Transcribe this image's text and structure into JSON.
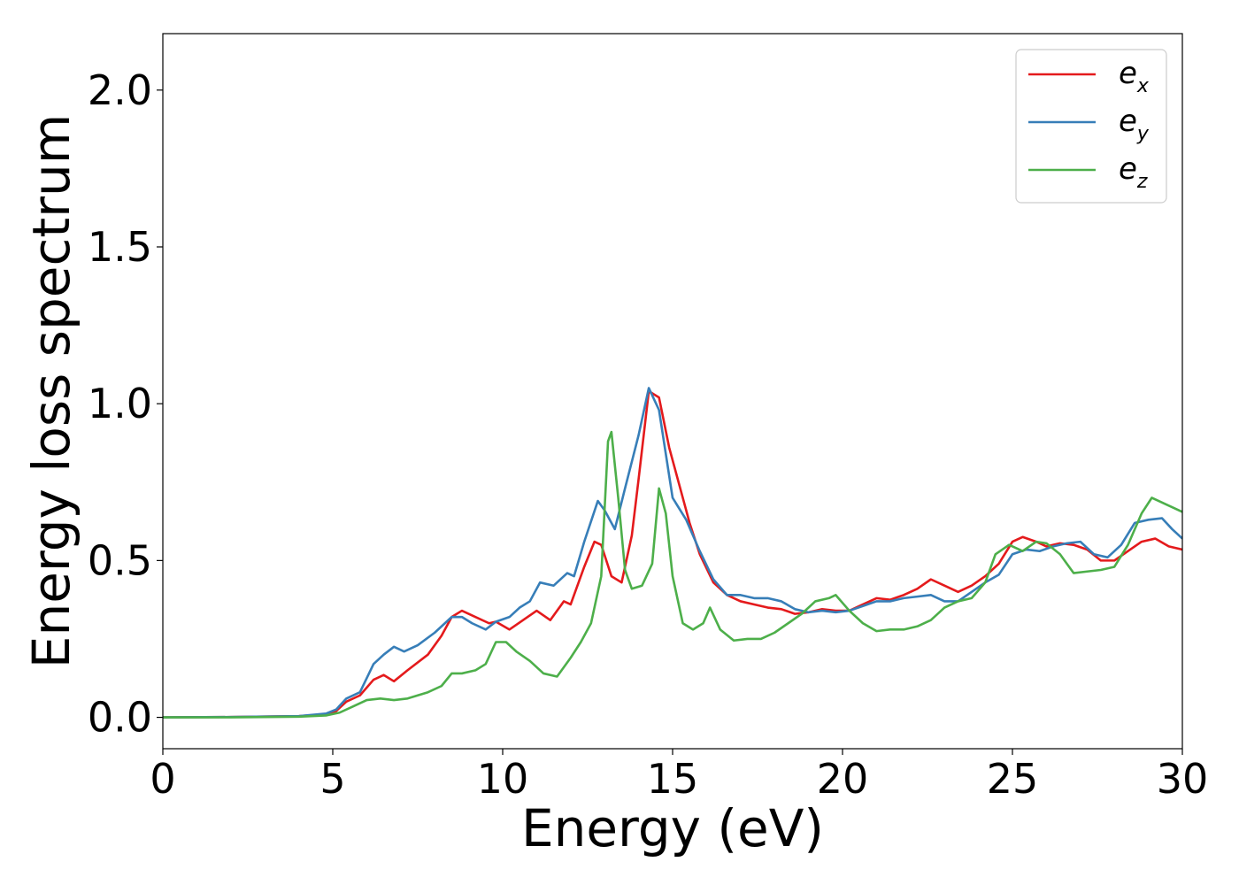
{
  "chart_data": {
    "type": "line",
    "title": "",
    "xlabel": "Energy (eV)",
    "ylabel": "Energy loss spectrum",
    "xlim": [
      0,
      30
    ],
    "ylim": [
      -0.1,
      2.18
    ],
    "xticks": [
      0,
      5,
      10,
      15,
      20,
      25,
      30
    ],
    "xtick_labels": [
      "0",
      "5",
      "10",
      "15",
      "20",
      "25",
      "30"
    ],
    "yticks": [
      0.0,
      0.5,
      1.0,
      1.5,
      2.0
    ],
    "ytick_labels": [
      "0.0",
      "0.5",
      "1.0",
      "1.5",
      "2.0"
    ],
    "grid": false,
    "legend_position": "top-right",
    "series": [
      {
        "name": "e_x",
        "label_base": "e",
        "label_sub": "x",
        "color": "#e41a1c",
        "points": [
          [
            0,
            0
          ],
          [
            2,
            0.001
          ],
          [
            4,
            0.004
          ],
          [
            4.8,
            0.01
          ],
          [
            5.1,
            0.02
          ],
          [
            5.4,
            0.05
          ],
          [
            5.8,
            0.07
          ],
          [
            6.2,
            0.12
          ],
          [
            6.5,
            0.135
          ],
          [
            6.8,
            0.115
          ],
          [
            7.2,
            0.15
          ],
          [
            7.8,
            0.2
          ],
          [
            8.2,
            0.26
          ],
          [
            8.5,
            0.32
          ],
          [
            8.8,
            0.34
          ],
          [
            9.2,
            0.32
          ],
          [
            9.6,
            0.3
          ],
          [
            9.8,
            0.305
          ],
          [
            10.2,
            0.28
          ],
          [
            10.6,
            0.31
          ],
          [
            11.0,
            0.34
          ],
          [
            11.4,
            0.31
          ],
          [
            11.8,
            0.37
          ],
          [
            12.0,
            0.36
          ],
          [
            12.4,
            0.48
          ],
          [
            12.7,
            0.56
          ],
          [
            12.9,
            0.55
          ],
          [
            13.2,
            0.45
          ],
          [
            13.5,
            0.43
          ],
          [
            13.8,
            0.58
          ],
          [
            14.0,
            0.76
          ],
          [
            14.3,
            1.04
          ],
          [
            14.6,
            1.02
          ],
          [
            14.9,
            0.86
          ],
          [
            15.2,
            0.74
          ],
          [
            15.5,
            0.62
          ],
          [
            15.8,
            0.52
          ],
          [
            16.2,
            0.43
          ],
          [
            16.6,
            0.39
          ],
          [
            17.0,
            0.37
          ],
          [
            17.4,
            0.36
          ],
          [
            17.8,
            0.35
          ],
          [
            18.2,
            0.345
          ],
          [
            18.6,
            0.33
          ],
          [
            19.0,
            0.335
          ],
          [
            19.4,
            0.345
          ],
          [
            19.8,
            0.34
          ],
          [
            20.2,
            0.34
          ],
          [
            20.6,
            0.36
          ],
          [
            21.0,
            0.38
          ],
          [
            21.4,
            0.375
          ],
          [
            21.8,
            0.39
          ],
          [
            22.2,
            0.41
          ],
          [
            22.6,
            0.44
          ],
          [
            23.0,
            0.42
          ],
          [
            23.4,
            0.4
          ],
          [
            23.8,
            0.42
          ],
          [
            24.2,
            0.45
          ],
          [
            24.6,
            0.49
          ],
          [
            25.0,
            0.56
          ],
          [
            25.3,
            0.575
          ],
          [
            25.7,
            0.56
          ],
          [
            26.0,
            0.545
          ],
          [
            26.4,
            0.555
          ],
          [
            26.8,
            0.55
          ],
          [
            27.2,
            0.535
          ],
          [
            27.6,
            0.5
          ],
          [
            28.0,
            0.5
          ],
          [
            28.4,
            0.53
          ],
          [
            28.8,
            0.56
          ],
          [
            29.2,
            0.57
          ],
          [
            29.6,
            0.545
          ],
          [
            30.0,
            0.535
          ]
        ]
      },
      {
        "name": "e_y",
        "label_base": "e",
        "label_sub": "y",
        "color": "#377eb8",
        "points": [
          [
            0,
            0
          ],
          [
            2,
            0.001
          ],
          [
            4,
            0.004
          ],
          [
            4.8,
            0.012
          ],
          [
            5.1,
            0.025
          ],
          [
            5.4,
            0.06
          ],
          [
            5.8,
            0.08
          ],
          [
            6.2,
            0.17
          ],
          [
            6.5,
            0.2
          ],
          [
            6.8,
            0.225
          ],
          [
            7.1,
            0.21
          ],
          [
            7.5,
            0.23
          ],
          [
            8.0,
            0.27
          ],
          [
            8.5,
            0.32
          ],
          [
            8.8,
            0.32
          ],
          [
            9.1,
            0.3
          ],
          [
            9.5,
            0.28
          ],
          [
            9.8,
            0.305
          ],
          [
            10.2,
            0.32
          ],
          [
            10.5,
            0.35
          ],
          [
            10.8,
            0.37
          ],
          [
            11.1,
            0.43
          ],
          [
            11.5,
            0.42
          ],
          [
            11.9,
            0.46
          ],
          [
            12.1,
            0.45
          ],
          [
            12.4,
            0.56
          ],
          [
            12.8,
            0.69
          ],
          [
            13.0,
            0.66
          ],
          [
            13.3,
            0.6
          ],
          [
            13.6,
            0.73
          ],
          [
            14.0,
            0.9
          ],
          [
            14.3,
            1.05
          ],
          [
            14.6,
            0.98
          ],
          [
            15.0,
            0.7
          ],
          [
            15.4,
            0.63
          ],
          [
            15.8,
            0.53
          ],
          [
            16.2,
            0.44
          ],
          [
            16.6,
            0.39
          ],
          [
            17.0,
            0.39
          ],
          [
            17.4,
            0.38
          ],
          [
            17.8,
            0.38
          ],
          [
            18.2,
            0.37
          ],
          [
            18.6,
            0.345
          ],
          [
            19.0,
            0.335
          ],
          [
            19.4,
            0.34
          ],
          [
            19.8,
            0.335
          ],
          [
            20.2,
            0.34
          ],
          [
            20.6,
            0.355
          ],
          [
            21.0,
            0.37
          ],
          [
            21.4,
            0.37
          ],
          [
            21.8,
            0.38
          ],
          [
            22.2,
            0.385
          ],
          [
            22.6,
            0.39
          ],
          [
            23.0,
            0.37
          ],
          [
            23.4,
            0.37
          ],
          [
            23.8,
            0.4
          ],
          [
            24.2,
            0.43
          ],
          [
            24.6,
            0.455
          ],
          [
            25.0,
            0.52
          ],
          [
            25.4,
            0.535
          ],
          [
            25.8,
            0.53
          ],
          [
            26.2,
            0.545
          ],
          [
            26.6,
            0.555
          ],
          [
            27.0,
            0.56
          ],
          [
            27.4,
            0.52
          ],
          [
            27.8,
            0.51
          ],
          [
            28.2,
            0.55
          ],
          [
            28.6,
            0.62
          ],
          [
            29.0,
            0.63
          ],
          [
            29.4,
            0.635
          ],
          [
            29.7,
            0.6
          ],
          [
            30.0,
            0.57
          ]
        ]
      },
      {
        "name": "e_z",
        "label_base": "e",
        "label_sub": "z",
        "color": "#4daf4a",
        "points": [
          [
            0,
            0
          ],
          [
            2,
            0.0
          ],
          [
            4,
            0.002
          ],
          [
            4.8,
            0.006
          ],
          [
            5.2,
            0.015
          ],
          [
            5.6,
            0.035
          ],
          [
            6.0,
            0.055
          ],
          [
            6.4,
            0.06
          ],
          [
            6.8,
            0.055
          ],
          [
            7.2,
            0.06
          ],
          [
            7.8,
            0.08
          ],
          [
            8.2,
            0.1
          ],
          [
            8.5,
            0.14
          ],
          [
            8.8,
            0.14
          ],
          [
            9.2,
            0.15
          ],
          [
            9.5,
            0.17
          ],
          [
            9.8,
            0.24
          ],
          [
            10.1,
            0.24
          ],
          [
            10.4,
            0.21
          ],
          [
            10.8,
            0.18
          ],
          [
            11.2,
            0.14
          ],
          [
            11.6,
            0.13
          ],
          [
            12.0,
            0.19
          ],
          [
            12.3,
            0.24
          ],
          [
            12.6,
            0.3
          ],
          [
            12.9,
            0.45
          ],
          [
            13.1,
            0.88
          ],
          [
            13.2,
            0.91
          ],
          [
            13.4,
            0.7
          ],
          [
            13.6,
            0.47
          ],
          [
            13.8,
            0.41
          ],
          [
            14.1,
            0.42
          ],
          [
            14.4,
            0.49
          ],
          [
            14.6,
            0.73
          ],
          [
            14.8,
            0.65
          ],
          [
            15.0,
            0.45
          ],
          [
            15.3,
            0.3
          ],
          [
            15.6,
            0.28
          ],
          [
            15.9,
            0.3
          ],
          [
            16.1,
            0.35
          ],
          [
            16.4,
            0.28
          ],
          [
            16.8,
            0.245
          ],
          [
            17.2,
            0.25
          ],
          [
            17.6,
            0.25
          ],
          [
            18.0,
            0.27
          ],
          [
            18.4,
            0.3
          ],
          [
            18.8,
            0.33
          ],
          [
            19.2,
            0.37
          ],
          [
            19.6,
            0.38
          ],
          [
            19.8,
            0.39
          ],
          [
            20.2,
            0.34
          ],
          [
            20.6,
            0.3
          ],
          [
            21.0,
            0.275
          ],
          [
            21.4,
            0.28
          ],
          [
            21.8,
            0.28
          ],
          [
            22.2,
            0.29
          ],
          [
            22.6,
            0.31
          ],
          [
            23.0,
            0.35
          ],
          [
            23.4,
            0.37
          ],
          [
            23.8,
            0.38
          ],
          [
            24.2,
            0.43
          ],
          [
            24.5,
            0.52
          ],
          [
            24.9,
            0.55
          ],
          [
            25.3,
            0.53
          ],
          [
            25.7,
            0.56
          ],
          [
            26.0,
            0.555
          ],
          [
            26.4,
            0.52
          ],
          [
            26.8,
            0.46
          ],
          [
            27.2,
            0.465
          ],
          [
            27.6,
            0.47
          ],
          [
            28.0,
            0.48
          ],
          [
            28.4,
            0.55
          ],
          [
            28.8,
            0.65
          ],
          [
            29.1,
            0.7
          ],
          [
            29.5,
            0.68
          ],
          [
            30.0,
            0.655
          ]
        ]
      }
    ]
  }
}
